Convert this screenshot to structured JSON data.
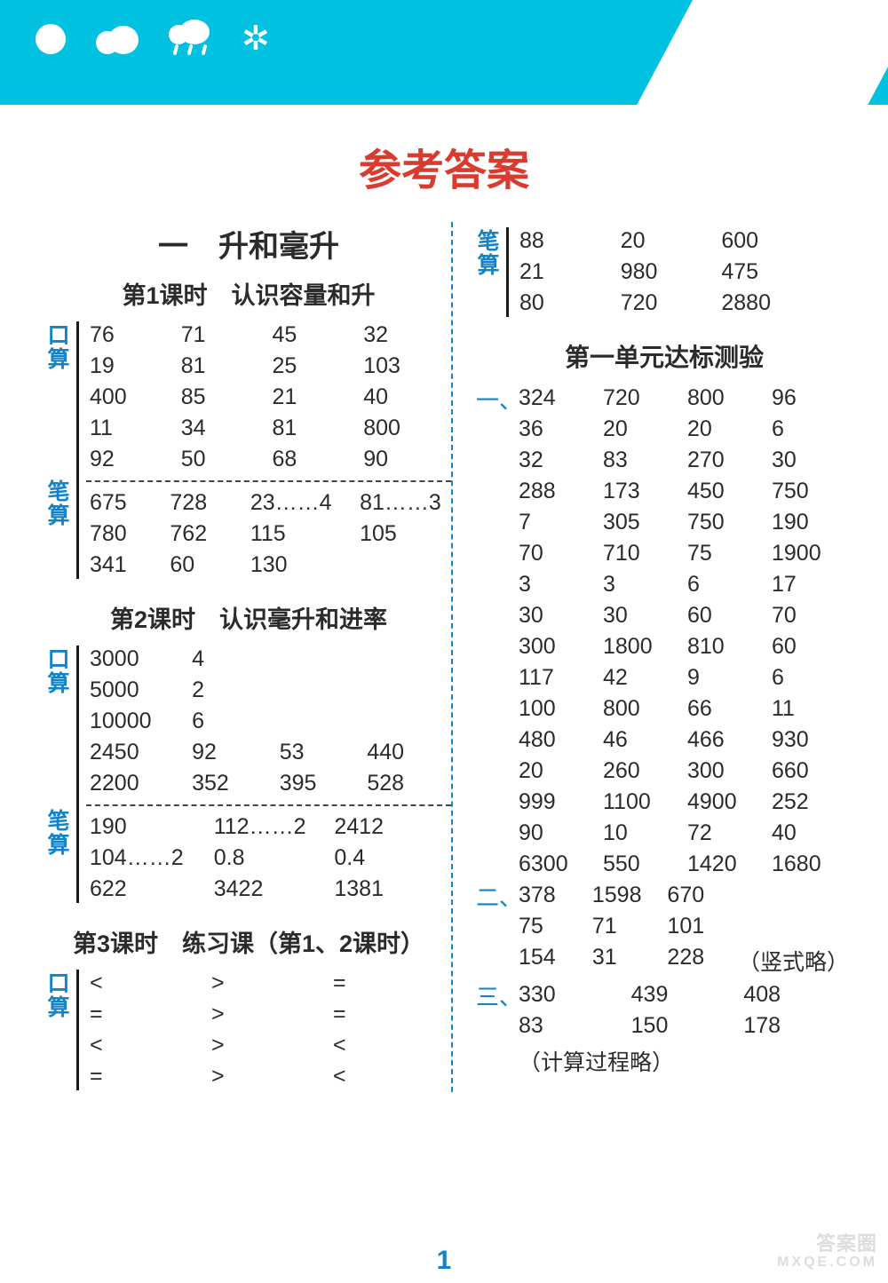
{
  "colors": {
    "banner": "#00c1e0",
    "title": "#d93b2f",
    "accent": "#1183c9",
    "text": "#2b2b2b",
    "divider": "#1183c9"
  },
  "page_title": "参考答案",
  "page_number": "1",
  "watermark": {
    "line1": "答案圈",
    "line2": "MXQE.COM"
  },
  "left": {
    "unit_title": "一　升和毫升",
    "lesson1": {
      "title": "第1课时　认识容量和升",
      "kousuan_label": "口算",
      "bisuan_label": "笔算",
      "kousuan_rows": [
        [
          "76",
          "71",
          "45",
          "32"
        ],
        [
          "19",
          "81",
          "25",
          "103"
        ],
        [
          "400",
          "85",
          "21",
          "40"
        ],
        [
          "11",
          "34",
          "81",
          "800"
        ],
        [
          "92",
          "50",
          "68",
          "90"
        ]
      ],
      "bisuan_rows": [
        [
          "675",
          "728",
          "23……4",
          "81……3"
        ],
        [
          "780",
          "762",
          "115",
          "105"
        ],
        [
          "341",
          "60",
          "130",
          ""
        ]
      ]
    },
    "lesson2": {
      "title": "第2课时　认识毫升和进率",
      "kousuan_label": "口算",
      "bisuan_label": "笔算",
      "kousuan_rows": [
        [
          "3000",
          "4",
          "",
          ""
        ],
        [
          "5000",
          "2",
          "",
          ""
        ],
        [
          "10000",
          "6",
          "",
          ""
        ],
        [
          "2450",
          "92",
          "53",
          "440"
        ],
        [
          "2200",
          "352",
          "395",
          "528"
        ]
      ],
      "bisuan_rows": [
        [
          "190",
          "112……2",
          "2412"
        ],
        [
          "104……2",
          "0.8",
          "0.4"
        ],
        [
          "622",
          "3422",
          "1381"
        ]
      ]
    },
    "lesson3": {
      "title": "第3课时　练习课（第1、2课时）",
      "kousuan_label": "口算",
      "kousuan_rows": [
        [
          "<",
          ">",
          "="
        ],
        [
          "=",
          ">",
          "="
        ],
        [
          "<",
          ">",
          "<"
        ],
        [
          "=",
          ">",
          "<"
        ]
      ]
    }
  },
  "right": {
    "bisuan_label": "笔算",
    "top_rows": [
      [
        "88",
        "20",
        "600"
      ],
      [
        "21",
        "980",
        "475"
      ],
      [
        "80",
        "720",
        "2880"
      ]
    ],
    "test_title": "第一单元达标测验",
    "sec1_label": "一、",
    "sec1_rows": [
      [
        "324",
        "720",
        "800",
        "96"
      ],
      [
        "36",
        "20",
        "20",
        "6"
      ],
      [
        "32",
        "83",
        "270",
        "30"
      ],
      [
        "288",
        "173",
        "450",
        "750"
      ],
      [
        "7",
        "305",
        "750",
        "190"
      ],
      [
        "70",
        "710",
        "75",
        "1900"
      ],
      [
        "3",
        "3",
        "6",
        "17"
      ],
      [
        "30",
        "30",
        "60",
        "70"
      ],
      [
        "300",
        "1800",
        "810",
        "60"
      ],
      [
        "117",
        "42",
        "9",
        "6"
      ],
      [
        "100",
        "800",
        "66",
        "11"
      ],
      [
        "480",
        "46",
        "466",
        "930"
      ],
      [
        "20",
        "260",
        "300",
        "660"
      ],
      [
        "999",
        "1100",
        "4900",
        "252"
      ],
      [
        "90",
        "10",
        "72",
        "40"
      ],
      [
        "6300",
        "550",
        "1420",
        "1680"
      ]
    ],
    "sec2_label": "二、",
    "sec2_rows": [
      [
        "378",
        "1598",
        "670",
        ""
      ],
      [
        "75",
        "71",
        "101",
        ""
      ],
      [
        "154",
        "31",
        "228",
        "（竖式略）"
      ]
    ],
    "sec3_label": "三、",
    "sec3_rows": [
      [
        "330",
        "439",
        "408"
      ],
      [
        "83",
        "150",
        "178"
      ]
    ],
    "sec3_note": "（计算过程略）"
  }
}
